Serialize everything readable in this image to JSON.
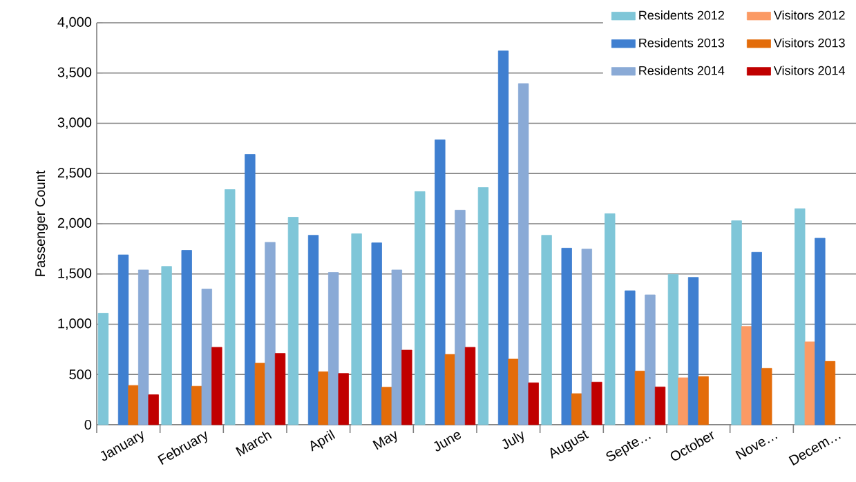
{
  "chart_data": {
    "type": "bar",
    "ylabel": "Passenger Count",
    "categories": [
      "January",
      "February",
      "March",
      "April",
      "May",
      "June",
      "July",
      "August",
      "Septe…",
      "October",
      "Nove…",
      "Decem…"
    ],
    "series": [
      {
        "name": "Residents 2012",
        "color": "#7fc6d8",
        "values": [
          1110,
          1575,
          2340,
          2065,
          1900,
          2320,
          2360,
          1885,
          2100,
          1495,
          2030,
          2150
        ]
      },
      {
        "name": "Visitors 2012",
        "color": "#fb9a64",
        "values": [
          null,
          null,
          null,
          null,
          null,
          null,
          null,
          null,
          null,
          467,
          978,
          825
        ]
      },
      {
        "name": "Residents 2013",
        "color": "#3f7fd0",
        "values": [
          1690,
          1735,
          2690,
          1885,
          1810,
          2835,
          3720,
          1757,
          1333,
          1466,
          1716,
          1856
        ]
      },
      {
        "name": "Visitors 2013",
        "color": "#e36c0a",
        "values": [
          390,
          383,
          612,
          527,
          373,
          699,
          653,
          309,
          534,
          479,
          561,
          630
        ]
      },
      {
        "name": "Residents 2014",
        "color": "#8aaad6",
        "values": [
          1540,
          1350,
          1815,
          1515,
          1540,
          2135,
          3395,
          1748,
          1292,
          null,
          null,
          null
        ]
      },
      {
        "name": "Visitors 2014",
        "color": "#c00000",
        "values": [
          298,
          770,
          710,
          510,
          742,
          770,
          417,
          424,
          376,
          null,
          null,
          null
        ]
      }
    ],
    "ylim": [
      0,
      4000
    ],
    "yticks": [
      {
        "value": 0,
        "label": "0"
      },
      {
        "value": 500,
        "label": "500"
      },
      {
        "value": 1000,
        "label": "1,000"
      },
      {
        "value": 1500,
        "label": "1,500"
      },
      {
        "value": 2000,
        "label": "2,000"
      },
      {
        "value": 2500,
        "label": "2,500"
      },
      {
        "value": 3000,
        "label": "3,000"
      },
      {
        "value": 3500,
        "label": "3,500"
      },
      {
        "value": 4000,
        "label": "4,000"
      }
    ],
    "grid": "y",
    "legend": "top right"
  }
}
